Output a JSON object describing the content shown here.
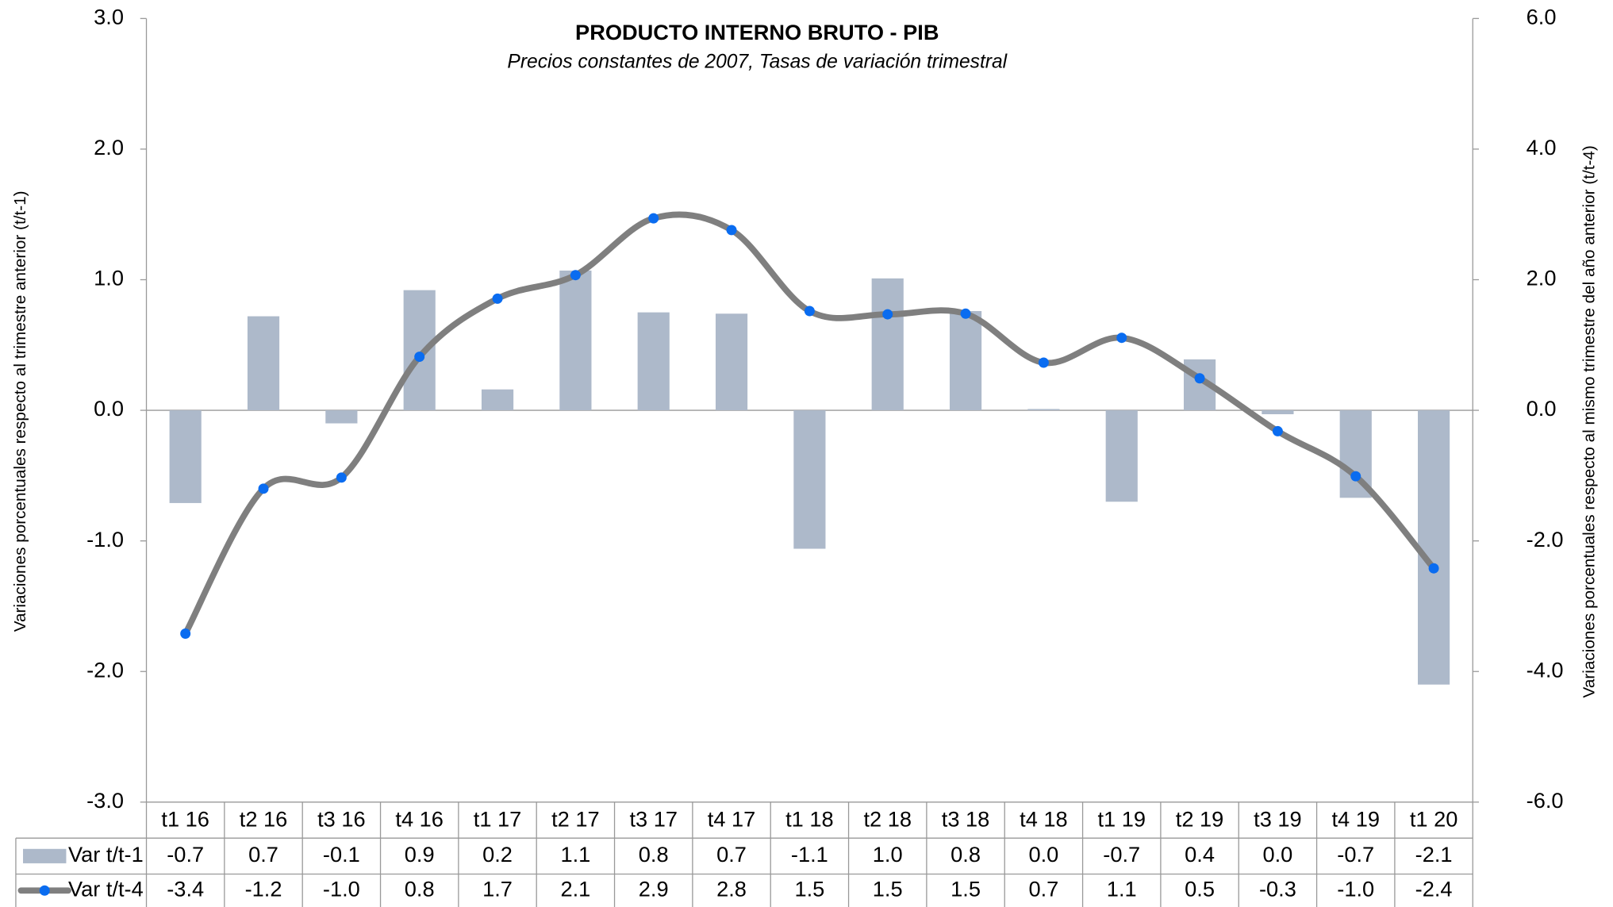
{
  "chart_data": {
    "type": "bar-line",
    "title": "PRODUCTO INTERNO BRUTO - PIB",
    "subtitle": "Precios constantes de 2007, Tasas de variación trimestral",
    "y_label": "Variaciones porcentuales respecto al trimestre anterior (t/t-1)",
    "y2_label": "Variaciones porcentuales respecto al mismo trimestre del año anterior (t/t-4)",
    "categories": [
      "t1 16",
      "t2 16",
      "t3 16",
      "t4 16",
      "t1 17",
      "t2 17",
      "t3 17",
      "t4 17",
      "t1 18",
      "t2 18",
      "t3 18",
      "t4 18",
      "t1 19",
      "t2 19",
      "t3 19",
      "t4 19",
      "t1 20"
    ],
    "series": [
      {
        "name": "Var t/t-1",
        "type": "bar",
        "color": "#adb9ca",
        "values": [
          -0.71,
          0.72,
          -0.1,
          0.92,
          0.16,
          1.07,
          0.75,
          0.74,
          -1.06,
          1.01,
          0.76,
          0.01,
          -0.7,
          0.39,
          -0.03,
          -0.67,
          -2.1
        ],
        "value_labels": [
          "-0.7",
          "0.7",
          "-0.1",
          "0.9",
          "0.2",
          "1.1",
          "0.8",
          "0.7",
          "-1.1",
          "1.0",
          "0.8",
          "0.0",
          "-0.7",
          "0.4",
          "0.0",
          "-0.7",
          "-2.1"
        ]
      },
      {
        "name": "Var t/t-4",
        "type": "line",
        "axis": "y2",
        "color": "#7f7f7f",
        "marker_color": "#0a6cf0",
        "values": [
          -3.42,
          -1.2,
          -1.03,
          0.82,
          1.71,
          2.07,
          2.94,
          2.76,
          1.52,
          1.47,
          1.48,
          0.73,
          1.11,
          0.49,
          -0.32,
          -1.01,
          -2.42
        ],
        "value_labels": [
          "-3.4",
          "-1.2",
          "-1.0",
          "0.8",
          "1.7",
          "2.1",
          "2.9",
          "2.8",
          "1.5",
          "1.5",
          "1.5",
          "0.7",
          "1.1",
          "0.5",
          "-0.3",
          "-1.0",
          "-2.4"
        ]
      }
    ],
    "ylim": [
      -3,
      3
    ],
    "yticks": [
      {
        "value": -3,
        "label": "-3.0"
      },
      {
        "value": -2,
        "label": "-2.0"
      },
      {
        "value": -1,
        "label": "-1.0"
      },
      {
        "value": 0,
        "label": "0.0"
      },
      {
        "value": 1,
        "label": "1.0"
      },
      {
        "value": 2,
        "label": "2.0"
      },
      {
        "value": 3,
        "label": "3.0"
      }
    ],
    "y2lim": [
      -6,
      6
    ],
    "y2ticks": [
      {
        "value": -6,
        "label": "-6.0"
      },
      {
        "value": -4,
        "label": "-4.0"
      },
      {
        "value": -2,
        "label": "-2.0"
      },
      {
        "value": 0,
        "label": "0.0"
      },
      {
        "value": 2,
        "label": "2.0"
      },
      {
        "value": 4,
        "label": "4.0"
      },
      {
        "value": 6,
        "label": "6.0"
      }
    ]
  }
}
